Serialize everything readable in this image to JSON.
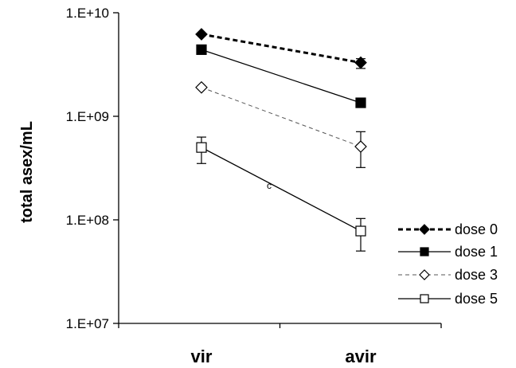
{
  "chart_data": {
    "type": "line",
    "title": "",
    "xlabel": "",
    "ylabel": "total asex/mL",
    "y_scale": "log",
    "ylim": [
      10000000,
      10000000000
    ],
    "y_ticks": [
      {
        "value": 10000000,
        "label": "1.E+07"
      },
      {
        "value": 100000000,
        "label": "1.E+08"
      },
      {
        "value": 1000000000,
        "label": "1.E+09"
      },
      {
        "value": 10000000000,
        "label": "1.E+10"
      }
    ],
    "categories": [
      "vir",
      "avir"
    ],
    "grid": false,
    "legend_position": "right",
    "annotation": "c",
    "series": [
      {
        "name": "dose 0",
        "values": [
          6200000000,
          3300000000
        ],
        "err_low": [
          null,
          2900000000
        ],
        "err_high": [
          null,
          3600000000
        ],
        "marker": "diamond-filled",
        "line": "dashed-bold",
        "color": "#000000"
      },
      {
        "name": "dose 1",
        "values": [
          4400000000,
          1350000000
        ],
        "err_low": [
          null,
          null
        ],
        "err_high": [
          null,
          null
        ],
        "marker": "square-filled",
        "line": "solid",
        "color": "#000000"
      },
      {
        "name": "dose 3",
        "values": [
          1900000000,
          510000000
        ],
        "err_low": [
          null,
          320000000
        ],
        "err_high": [
          null,
          710000000
        ],
        "marker": "diamond-open",
        "line": "dashed-thin",
        "color": "#555555"
      },
      {
        "name": "dose 5",
        "values": [
          500000000,
          78000000
        ],
        "err_low": [
          350000000,
          50000000
        ],
        "err_high": [
          630000000,
          103000000
        ],
        "marker": "square-open",
        "line": "solid",
        "color": "#000000"
      }
    ]
  }
}
